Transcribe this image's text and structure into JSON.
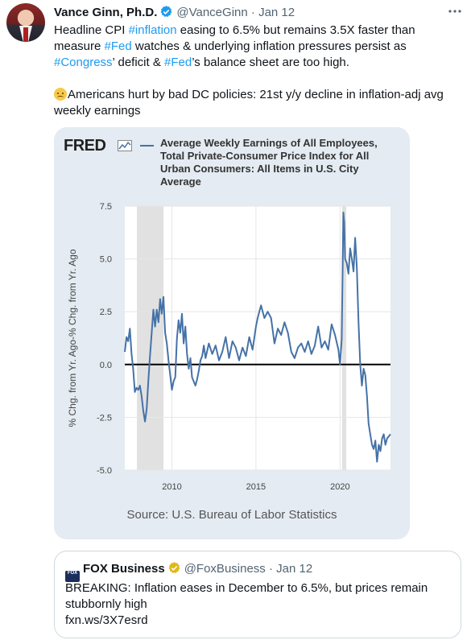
{
  "tweet": {
    "author_name": "Vance Ginn, Ph.D.",
    "handle": "@VanceGinn",
    "separator": "·",
    "date": "Jan 12",
    "more_icon": "more-horizontal-icon",
    "verified_icon": "verified-badge-icon",
    "text": {
      "line1_a": "Headline CPI ",
      "tag_inflation": "#inflation",
      "line1_b": " easing to 6.5% but remains 3.5X faster than measure ",
      "tag_fed1": "#Fed",
      "line1_c": " watches & underlying inflation pressures persist as ",
      "tag_congress": "#Congress",
      "line1_d": "’ deficit & ",
      "tag_fed2": "#Fed",
      "line1_e": "’s balance sheet are too high.",
      "line2": "Americans hurt by bad DC policies: 21st y/y decline in inflation-adj avg weekly earnings",
      "emoji": "sad-face-emoji-icon"
    },
    "colors": {
      "accent": "#1d9bf0",
      "text": "#0f1419",
      "muted": "#536471"
    }
  },
  "chart": {
    "logo": "FRED",
    "title": "Average Weekly Earnings of All Employees, Total Private-Consumer Price Index for All Urban Consumers: All Items in U.S. City Average",
    "source": "Source: U.S. Bureau of Labor Statistics"
  },
  "chart_data": {
    "type": "line",
    "title": "Average Weekly Earnings of All Employees, Total Private-Consumer Price Index for All Urban Consumers: All Items in U.S. City Average",
    "xlabel": "",
    "ylabel": "% Chg. from Yr. Ago-% Chg. from Yr. Ago",
    "xlim": [
      2007.2,
      2023.0
    ],
    "ylim": [
      -5.0,
      7.5
    ],
    "yticks": [
      7.5,
      5.0,
      2.5,
      0.0,
      -2.5,
      -5.0
    ],
    "ytick_labels": [
      "7.5",
      "5.0",
      "2.5",
      "0.0",
      "-2.5",
      "-5.0"
    ],
    "xticks": [
      2010,
      2015,
      2020
    ],
    "xtick_labels": [
      "2010",
      "2015",
      "2020"
    ],
    "grid": true,
    "legend": "top",
    "recessions": [
      [
        2007.92,
        2009.5
      ],
      [
        2020.12,
        2020.37
      ]
    ],
    "color": "#4572a7",
    "series": [
      {
        "x": [
          2007.2,
          2007.3,
          2007.4,
          2007.5,
          2007.6,
          2007.7,
          2007.8,
          2007.9,
          2008.0,
          2008.1,
          2008.2,
          2008.3,
          2008.4,
          2008.5,
          2008.6,
          2008.7,
          2008.8,
          2008.9,
          2009.0,
          2009.1,
          2009.2,
          2009.3,
          2009.4,
          2009.5,
          2009.6,
          2009.7,
          2009.8,
          2009.9,
          2010.0,
          2010.1,
          2010.2,
          2010.3,
          2010.4,
          2010.5,
          2010.6,
          2010.7,
          2010.8,
          2010.9,
          2011.0,
          2011.1,
          2011.2,
          2011.3,
          2011.4,
          2011.5,
          2011.6,
          2011.7,
          2011.8,
          2011.9,
          2012.0,
          2012.2,
          2012.4,
          2012.6,
          2012.8,
          2013.0,
          2013.2,
          2013.4,
          2013.6,
          2013.8,
          2014.0,
          2014.2,
          2014.4,
          2014.6,
          2014.8,
          2015.0,
          2015.1,
          2015.3,
          2015.5,
          2015.7,
          2015.9,
          2016.1,
          2016.3,
          2016.5,
          2016.7,
          2016.9,
          2017.1,
          2017.3,
          2017.5,
          2017.7,
          2017.9,
          2018.1,
          2018.3,
          2018.5,
          2018.7,
          2018.9,
          2019.1,
          2019.3,
          2019.5,
          2019.7,
          2019.9,
          2020.0,
          2020.1,
          2020.2,
          2020.25,
          2020.3,
          2020.4,
          2020.5,
          2020.6,
          2020.7,
          2020.8,
          2020.9,
          2021.0,
          2021.1,
          2021.2,
          2021.3,
          2021.4,
          2021.5,
          2021.6,
          2021.7,
          2021.8,
          2021.9,
          2022.0,
          2022.1,
          2022.2,
          2022.3,
          2022.4,
          2022.5,
          2022.6,
          2022.7,
          2022.8,
          2022.9,
          2023.0
        ],
        "y": [
          0.6,
          1.3,
          1.1,
          1.7,
          0.5,
          -0.2,
          -1.3,
          -1.1,
          -1.2,
          -1.0,
          -1.5,
          -2.2,
          -2.7,
          -2.1,
          -0.8,
          0.4,
          1.5,
          2.6,
          1.8,
          2.6,
          2.0,
          3.1,
          2.4,
          3.2,
          1.5,
          1.0,
          0.2,
          -0.5,
          -1.2,
          -0.8,
          -0.6,
          1.2,
          2.1,
          1.5,
          2.4,
          1.0,
          1.8,
          0.5,
          -0.2,
          0.3,
          -0.6,
          -0.8,
          -1.0,
          -0.7,
          -0.3,
          0.2,
          0.4,
          0.9,
          0.3,
          1.0,
          0.5,
          0.9,
          0.2,
          0.6,
          1.3,
          0.3,
          1.1,
          0.8,
          0.2,
          0.8,
          0.4,
          1.3,
          0.7,
          1.8,
          2.2,
          2.8,
          2.2,
          2.5,
          2.2,
          1.0,
          1.7,
          1.4,
          2.0,
          1.5,
          0.6,
          0.3,
          0.8,
          1.0,
          0.6,
          1.1,
          0.5,
          0.9,
          1.8,
          0.8,
          1.1,
          0.7,
          1.9,
          1.4,
          0.7,
          0.0,
          1.2,
          7.2,
          6.7,
          5.0,
          4.8,
          4.3,
          5.5,
          5.0,
          4.4,
          6.0,
          4.6,
          2.0,
          0.0,
          -1.0,
          -0.2,
          -0.5,
          -1.5,
          -2.8,
          -3.3,
          -3.8,
          -4.0,
          -3.6,
          -4.6,
          -3.8,
          -4.1,
          -3.5,
          -3.3,
          -3.8,
          -3.5,
          -3.4,
          -3.3
        ]
      }
    ]
  },
  "quote": {
    "logo_text": "FOX",
    "logo_icon": "fox-business-logo-icon",
    "name": "FOX Business",
    "verified_icon": "gold-verified-badge-icon",
    "handle": "@FoxBusiness",
    "separator": "·",
    "date": "Jan 12",
    "text": "BREAKING: Inflation eases in December to 6.5%, but prices remain stubbornly high",
    "link": "fxn.ws/3X7esrd"
  }
}
